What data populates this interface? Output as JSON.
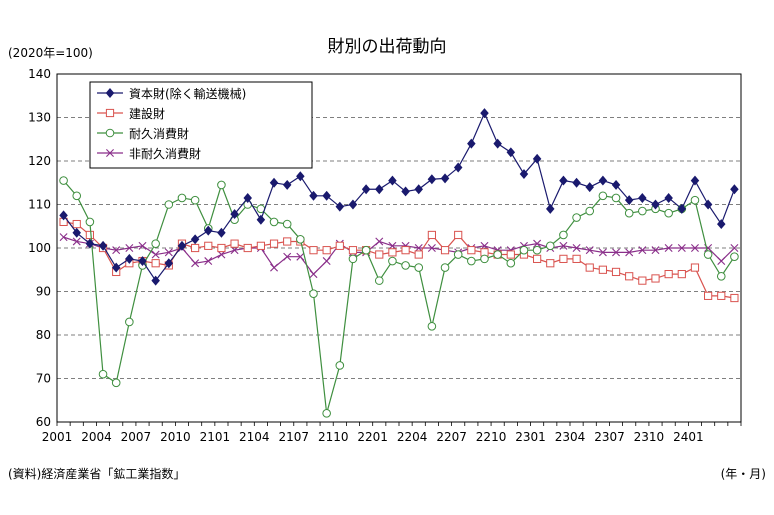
{
  "chart_data": {
    "type": "line",
    "title": "財別の出荷動向",
    "y_unit_label": "(2020年=100)",
    "source": "(資料)経済産業省「鉱工業指数」",
    "x_unit_label": "(年・月)",
    "ylim": [
      60,
      140
    ],
    "yticks": [
      60,
      70,
      80,
      90,
      100,
      110,
      120,
      130,
      140
    ],
    "grid": "horizontal dashed",
    "legend_position": "top-left",
    "x_tick_labels": [
      "2001",
      "2004",
      "2007",
      "2010",
      "2101",
      "2104",
      "2107",
      "2110",
      "2201",
      "2204",
      "2207",
      "2210",
      "2301",
      "2304",
      "2307",
      "2310",
      "2401"
    ],
    "x_tick_every": 3,
    "n_points": 52,
    "series": [
      {
        "name": "資本財(除く輸送機械)",
        "color": "#1a1a6e",
        "marker": "diamond",
        "values": [
          107.5,
          103.5,
          101.0,
          100.5,
          95.5,
          97.5,
          97.0,
          92.5,
          96.5,
          100.5,
          102.0,
          104.0,
          103.5,
          107.8,
          111.5,
          106.5,
          115.0,
          114.5,
          116.5,
          112.0,
          112.0,
          109.5,
          110.0,
          113.5,
          113.5,
          115.5,
          113.0,
          113.5,
          115.8,
          116.0,
          118.5,
          124.0,
          131.0,
          124.0,
          122.0,
          117.0,
          120.5,
          109.0,
          115.5,
          115.0,
          114.0,
          115.5,
          114.5,
          111.0,
          111.5,
          110.0,
          111.5,
          109.0,
          115.5,
          110.0,
          105.5,
          113.5
        ]
      },
      {
        "name": "建設財",
        "color": "#d9534f",
        "marker": "square",
        "values": [
          106.0,
          105.5,
          103.0,
          100.0,
          94.5,
          96.5,
          97.0,
          96.5,
          96.0,
          101.0,
          100.0,
          100.5,
          100.0,
          101.0,
          100.0,
          100.5,
          101.0,
          101.5,
          101.5,
          99.5,
          99.5,
          100.5,
          99.5,
          99.5,
          98.5,
          99.0,
          99.5,
          98.5,
          103.0,
          99.5,
          103.0,
          99.5,
          99.0,
          98.5,
          98.5,
          98.5,
          97.5,
          96.5,
          97.5,
          97.5,
          95.5,
          95.0,
          94.5,
          93.5,
          92.5,
          93.0,
          94.0,
          94.0,
          95.5,
          89.0,
          89.0,
          88.5
        ]
      },
      {
        "name": "耐久消費財",
        "color": "#3f8f3f",
        "marker": "circle",
        "values": [
          115.5,
          112.0,
          106.0,
          71.0,
          69.0,
          83.0,
          96.0,
          101.0,
          110.0,
          111.5,
          111.0,
          104.5,
          114.5,
          106.5,
          110.0,
          109.0,
          106.0,
          105.5,
          102.0,
          89.5,
          62.0,
          73.0,
          97.5,
          99.5,
          92.5,
          97.0,
          96.0,
          95.5,
          82.0,
          95.5,
          98.5,
          97.0,
          97.5,
          98.5,
          96.5,
          99.5,
          99.5,
          100.5,
          103.0,
          107.0,
          108.5,
          112.0,
          111.5,
          108.0,
          108.5,
          109.0,
          108.0,
          109.0,
          111.0,
          98.5,
          93.5,
          98.0
        ]
      },
      {
        "name": "非耐久消費財",
        "color": "#8a2f8a",
        "marker": "x",
        "values": [
          102.5,
          101.5,
          101.0,
          100.0,
          99.5,
          100.0,
          100.5,
          98.5,
          99.0,
          100.0,
          96.5,
          97.0,
          98.5,
          99.5,
          100.0,
          100.0,
          95.5,
          98.0,
          98.0,
          94.0,
          97.0,
          101.0,
          99.0,
          99.0,
          101.5,
          100.5,
          100.5,
          100.0,
          100.0,
          99.5,
          99.0,
          100.0,
          100.5,
          99.5,
          99.5,
          100.5,
          101.0,
          100.0,
          100.5,
          100.0,
          99.5,
          99.0,
          99.0,
          99.0,
          99.5,
          99.5,
          100.0,
          100.0,
          100.0,
          100.0,
          97.0,
          100.0
        ]
      }
    ]
  }
}
